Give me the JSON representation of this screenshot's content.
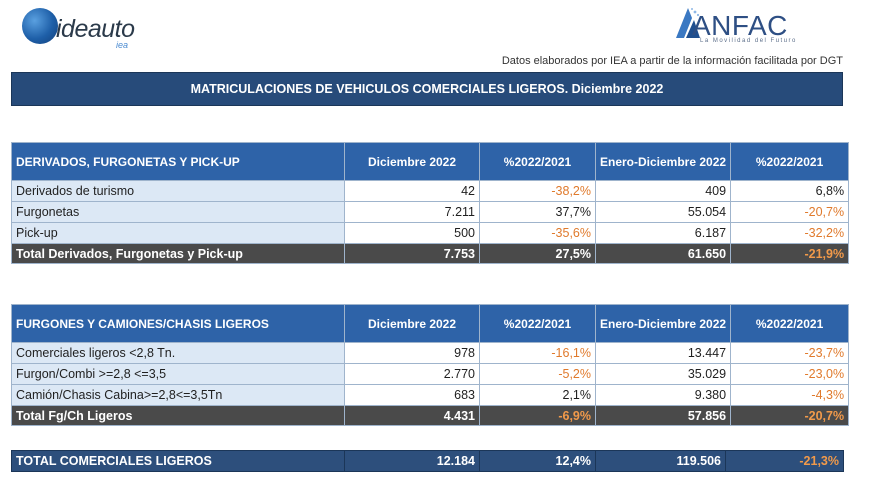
{
  "logos": {
    "ideauto": {
      "name": "ideauto",
      "sub": "iea"
    },
    "anfac": {
      "name": "ANFAC",
      "tagline": "La Movilidad del Futuro"
    }
  },
  "source_note": "Datos elaborados por IEA a partir de la información facilitada por DGT",
  "main_title": "MATRICULACIONES DE VEHICULOS COMERCIALES LIGEROS. Diciembre 2022",
  "table1": {
    "headers": [
      "DERIVADOS, FURGONETAS Y PICK-UP",
      "Diciembre 2022",
      "%2022/2021",
      "Enero-Diciembre 2022",
      "%2022/2021"
    ],
    "rows": [
      {
        "label": "Derivados de turismo",
        "dic": "42",
        "pct1": "-38,2%",
        "ytd": "409",
        "pct2": "6,8%"
      },
      {
        "label": "Furgonetas",
        "dic": "7.211",
        "pct1": "37,7%",
        "ytd": "55.054",
        "pct2": "-20,7%"
      },
      {
        "label": "Pick-up",
        "dic": "500",
        "pct1": "-35,6%",
        "ytd": "6.187",
        "pct2": "-32,2%"
      }
    ],
    "total": {
      "label": "Total Derivados, Furgonetas y Pick-up",
      "dic": "7.753",
      "pct1": "27,5%",
      "ytd": "61.650",
      "pct2": "-21,9%"
    }
  },
  "table2": {
    "headers": [
      "FURGONES Y CAMIONES/CHASIS LIGEROS",
      "Diciembre 2022",
      "%2022/2021",
      "Enero-Diciembre 2022",
      "%2022/2021"
    ],
    "rows": [
      {
        "label": "Comerciales ligeros <2,8 Tn.",
        "dic": "978",
        "pct1": "-16,1%",
        "ytd": "13.447",
        "pct2": "-23,7%"
      },
      {
        "label": "Furgon/Combi >=2,8 <=3,5",
        "dic": "2.770",
        "pct1": "-5,2%",
        "ytd": "35.029",
        "pct2": "-23,0%"
      },
      {
        "label": "Camión/Chasis Cabina>=2,8<=3,5Tn",
        "dic": "683",
        "pct1": "2,1%",
        "ytd": "9.380",
        "pct2": "-4,3%"
      }
    ],
    "total": {
      "label": "Total Fg/Ch Ligeros",
      "dic": "4.431",
      "pct1": "-6,9%",
      "ytd": "57.856",
      "pct2": "-20,7%"
    }
  },
  "grand_total": {
    "label": "TOTAL COMERCIALES LIGEROS",
    "dic": "12.184",
    "pct1": "12,4%",
    "ytd": "119.506",
    "pct2": "-21,3%"
  },
  "colors": {
    "header_blue": "#2e63a8",
    "title_navy": "#274b7a",
    "negative_orange": "#e07a2c",
    "total_gray": "#4a4a4a",
    "label_fill": "#dce8f5"
  }
}
